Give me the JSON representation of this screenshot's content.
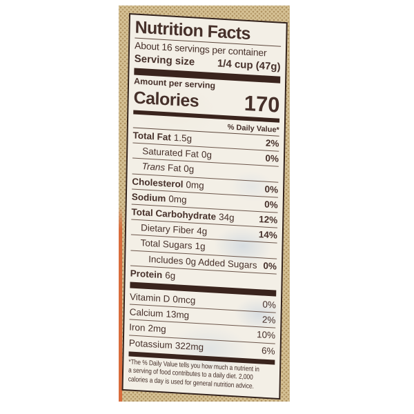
{
  "colors": {
    "page_background": "#ffffff",
    "package_tan": "#d7c397",
    "package_halftone_dot": "#8f6c38",
    "package_edge_orange": "#d96c3c",
    "label_background": "#f3efe6",
    "label_text": "#46302a",
    "divider_dark": "#3a241d"
  },
  "label": {
    "title": "Nutrition Facts",
    "servings_per_container": "About 16 servings per container",
    "serving_size": {
      "label": "Serving size",
      "value": "1/4 cup (47g)"
    },
    "amount_per_serving": "Amount per serving",
    "calories": {
      "label": "Calories",
      "value": "170"
    },
    "daily_value_header": "% Daily Value*",
    "rows": [
      {
        "name": "Total Fat",
        "amount": "1.5g",
        "dv": "2%"
      },
      {
        "name": "Saturated Fat",
        "amount": "0g",
        "dv": "0%"
      },
      {
        "name_italic": "Trans",
        "name_rest": " Fat 0g",
        "dv": ""
      },
      {
        "name": "Cholesterol",
        "amount": "0mg",
        "dv": "0%"
      },
      {
        "name": "Sodium",
        "amount": "0mg",
        "dv": "0%"
      },
      {
        "name": "Total Carbohydrate",
        "amount": "34g",
        "dv": "12%"
      },
      {
        "name": "Dietary Fiber",
        "amount": "4g",
        "dv": "14%"
      },
      {
        "name": "Total Sugars",
        "amount": "1g",
        "dv": ""
      },
      {
        "name": "Includes 0g Added Sugars",
        "amount": "",
        "dv": "0%"
      },
      {
        "name": "Protein",
        "amount": "6g",
        "dv": ""
      }
    ],
    "vitamins": [
      {
        "name": "Vitamin D",
        "amount": "0mcg",
        "dv": "0%"
      },
      {
        "name": "Calcium",
        "amount": "13mg",
        "dv": "2%"
      },
      {
        "name": "Iron",
        "amount": "2mg",
        "dv": "10%"
      },
      {
        "name": "Potassium",
        "amount": "322mg",
        "dv": "6%"
      }
    ],
    "footnote_lines": [
      "*The % Daily Value tells you how much a nutrient in",
      "a serving of food contributes to a daily diet. 2,000",
      "calories a day is used for general nutrition advice."
    ]
  }
}
